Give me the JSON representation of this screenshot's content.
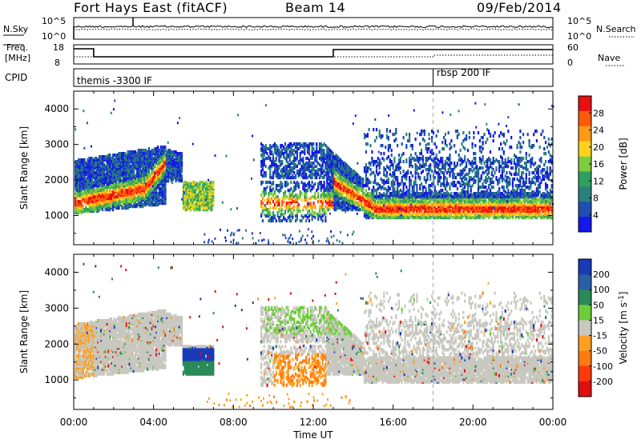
{
  "header": {
    "title": "Fort Hays East (fitACF)",
    "beam": "Beam 14",
    "date": "09/Feb/2014"
  },
  "side_labels": {
    "nsky": "N.Sky",
    "nsearch": "N.Search",
    "freq": "Freq.",
    "freq_unit": "[MHz]",
    "nave": "Nave",
    "cpid": "CPID"
  },
  "cpid_labels": [
    {
      "text": "themis -3300 IF",
      "time_h": 0.0
    },
    {
      "text": "rbsp 200 IF",
      "time_h": 18.0
    }
  ],
  "noise_axis": {
    "top_tick": "10^5",
    "bottom_tick": "10^0"
  },
  "freq_axis": {
    "ticks": [
      18,
      8
    ],
    "nave_ticks": [
      60,
      0
    ]
  },
  "chart_data": [
    {
      "type": "heatmap",
      "name": "power",
      "ylabel": "Slant Range [km]",
      "yticks": [
        1000,
        2000,
        3000,
        4000
      ],
      "ylim": [
        180,
        4500
      ],
      "xlim": [
        0,
        24
      ],
      "colorbar_label": "Power [dB]",
      "colorbar_ticks": [
        4,
        8,
        12,
        16,
        20,
        24,
        28
      ],
      "colorbar_range": [
        0,
        32
      ],
      "colors": [
        "#1418e8",
        "#1f4fb0",
        "#2a7f7f",
        "#2fa060",
        "#7fcc3c",
        "#ffd21e",
        "#ff9a14",
        "#ff5a0a",
        "#e81010"
      ]
    },
    {
      "type": "heatmap",
      "name": "velocity",
      "ylabel": "Slant Range [km]",
      "yticks": [
        1000,
        2000,
        3000,
        4000
      ],
      "ylim": [
        180,
        4500
      ],
      "xlim": [
        0,
        24
      ],
      "colorbar_label": "Velocity [m s^-1]",
      "colorbar_ticks": [
        200,
        100,
        50,
        15,
        -15,
        -50,
        -100,
        -200
      ],
      "colors": [
        "#1a3ab8",
        "#2a5fa8",
        "#2a8a58",
        "#6ccc3a",
        "#c8c8c0",
        "#ffa020",
        "#ff7a10",
        "#ff3a0a",
        "#e01010"
      ]
    }
  ],
  "xaxis": {
    "label": "Time UT",
    "ticks": [
      "00:00",
      "04:00",
      "08:00",
      "12:00",
      "16:00",
      "20:00",
      "00:00"
    ]
  }
}
